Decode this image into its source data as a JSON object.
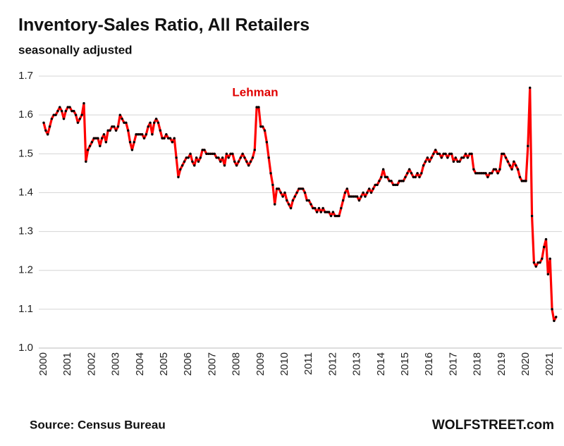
{
  "chart_data": {
    "type": "line",
    "title": "Inventory-Sales  Ratio, All Retailers",
    "subtitle": "seasonally adjusted",
    "annotation": "Lehman",
    "source": "Source: Census Bureau",
    "brand": "WOLFSTREET.com",
    "color": "#ff0000",
    "marker_color": "#000000",
    "grid": true,
    "ylim": [
      1.0,
      1.7
    ],
    "yticks": [
      {
        "value": 1.0,
        "label": "1.0"
      },
      1.1,
      1.2,
      1.3,
      1.4,
      1.5,
      1.6,
      1.7
    ],
    "categories": [
      "2000",
      null,
      null,
      null,
      null,
      null,
      null,
      null,
      null,
      null,
      null,
      null,
      "2001",
      null,
      null,
      null,
      null,
      null,
      null,
      null,
      null,
      null,
      null,
      null,
      "2002",
      null,
      null,
      null,
      null,
      null,
      null,
      null,
      null,
      null,
      null,
      null,
      "2003",
      null,
      null,
      null,
      null,
      null,
      null,
      null,
      null,
      null,
      null,
      null,
      "2004",
      null,
      null,
      null,
      null,
      null,
      null,
      null,
      null,
      null,
      null,
      null,
      "2005",
      null,
      null,
      null,
      null,
      null,
      null,
      null,
      null,
      null,
      null,
      null,
      "2006",
      null,
      null,
      null,
      null,
      null,
      null,
      null,
      null,
      null,
      null,
      null,
      "2007",
      null,
      null,
      null,
      null,
      null,
      null,
      null,
      null,
      null,
      null,
      null,
      "2008",
      null,
      null,
      null,
      null,
      null,
      null,
      null,
      null,
      null,
      null,
      null,
      "2009",
      null,
      null,
      null,
      null,
      null,
      null,
      null,
      null,
      null,
      null,
      null,
      "2010",
      null,
      null,
      null,
      null,
      null,
      null,
      null,
      null,
      null,
      null,
      null,
      "2011",
      null,
      null,
      null,
      null,
      null,
      null,
      null,
      null,
      null,
      null,
      null,
      "2012",
      null,
      null,
      null,
      null,
      null,
      null,
      null,
      null,
      null,
      null,
      null,
      "2013",
      null,
      null,
      null,
      null,
      null,
      null,
      null,
      null,
      null,
      null,
      null,
      "2014",
      null,
      null,
      null,
      null,
      null,
      null,
      null,
      null,
      null,
      null,
      null,
      "2015",
      null,
      null,
      null,
      null,
      null,
      null,
      null,
      null,
      null,
      null,
      null,
      "2016",
      null,
      null,
      null,
      null,
      null,
      null,
      null,
      null,
      null,
      null,
      null,
      "2017",
      null,
      null,
      null,
      null,
      null,
      null,
      null,
      null,
      null,
      null,
      null,
      "2018",
      null,
      null,
      null,
      null,
      null,
      null,
      null,
      null,
      null,
      null,
      null,
      "2019",
      null,
      null,
      null,
      null,
      null,
      null,
      null,
      null,
      null,
      null,
      null,
      "2020",
      null,
      null,
      null,
      null,
      null,
      null,
      null,
      null,
      null,
      null,
      null,
      "2021",
      null,
      null,
      null
    ],
    "values": [
      1.58,
      1.56,
      1.55,
      1.57,
      1.59,
      1.6,
      1.6,
      1.61,
      1.62,
      1.61,
      1.59,
      1.61,
      1.62,
      1.62,
      1.61,
      1.61,
      1.6,
      1.58,
      1.59,
      1.6,
      1.63,
      1.48,
      1.51,
      1.52,
      1.53,
      1.54,
      1.54,
      1.54,
      1.52,
      1.54,
      1.55,
      1.53,
      1.56,
      1.56,
      1.57,
      1.57,
      1.56,
      1.57,
      1.6,
      1.59,
      1.58,
      1.58,
      1.56,
      1.53,
      1.51,
      1.53,
      1.55,
      1.55,
      1.55,
      1.55,
      1.54,
      1.55,
      1.57,
      1.58,
      1.55,
      1.58,
      1.59,
      1.58,
      1.56,
      1.54,
      1.54,
      1.55,
      1.54,
      1.54,
      1.53,
      1.54,
      1.49,
      1.44,
      1.46,
      1.47,
      1.48,
      1.49,
      1.49,
      1.5,
      1.48,
      1.47,
      1.49,
      1.48,
      1.49,
      1.51,
      1.51,
      1.5,
      1.5,
      1.5,
      1.5,
      1.5,
      1.49,
      1.49,
      1.48,
      1.49,
      1.47,
      1.5,
      1.49,
      1.5,
      1.5,
      1.48,
      1.47,
      1.48,
      1.49,
      1.5,
      1.49,
      1.48,
      1.47,
      1.48,
      1.49,
      1.51,
      1.62,
      1.62,
      1.57,
      1.57,
      1.56,
      1.53,
      1.49,
      1.45,
      1.42,
      1.37,
      1.41,
      1.41,
      1.4,
      1.39,
      1.4,
      1.38,
      1.37,
      1.36,
      1.38,
      1.39,
      1.4,
      1.41,
      1.41,
      1.41,
      1.4,
      1.38,
      1.38,
      1.37,
      1.36,
      1.36,
      1.35,
      1.36,
      1.35,
      1.36,
      1.35,
      1.35,
      1.35,
      1.34,
      1.35,
      1.34,
      1.34,
      1.34,
      1.36,
      1.38,
      1.4,
      1.41,
      1.39,
      1.39,
      1.39,
      1.39,
      1.39,
      1.38,
      1.39,
      1.4,
      1.39,
      1.4,
      1.41,
      1.4,
      1.41,
      1.42,
      1.42,
      1.43,
      1.44,
      1.46,
      1.44,
      1.44,
      1.43,
      1.43,
      1.42,
      1.42,
      1.42,
      1.43,
      1.43,
      1.43,
      1.44,
      1.45,
      1.46,
      1.45,
      1.44,
      1.44,
      1.45,
      1.44,
      1.45,
      1.47,
      1.48,
      1.49,
      1.48,
      1.49,
      1.5,
      1.51,
      1.5,
      1.5,
      1.49,
      1.5,
      1.5,
      1.49,
      1.5,
      1.5,
      1.48,
      1.49,
      1.48,
      1.48,
      1.49,
      1.49,
      1.5,
      1.49,
      1.5,
      1.5,
      1.46,
      1.45,
      1.45,
      1.45,
      1.45,
      1.45,
      1.45,
      1.44,
      1.45,
      1.45,
      1.46,
      1.46,
      1.45,
      1.46,
      1.5,
      1.5,
      1.49,
      1.48,
      1.47,
      1.46,
      1.48,
      1.47,
      1.46,
      1.44,
      1.43,
      1.43,
      1.43,
      1.52,
      1.67,
      1.34,
      1.22,
      1.21,
      1.22,
      1.22,
      1.23,
      1.26,
      1.28,
      1.19,
      1.23,
      1.1,
      1.07,
      1.08
    ]
  }
}
